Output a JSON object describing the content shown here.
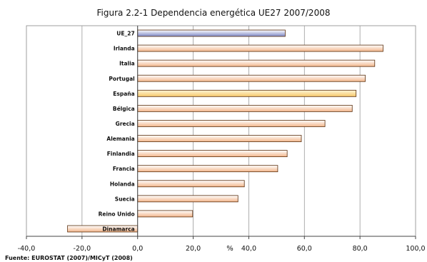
{
  "chart_data": {
    "type": "bar",
    "orientation": "horizontal",
    "title": "Figura 2.2-1 Dependencia energética UE27 2007/2008",
    "xlabel": "%",
    "source": "Fuente: EUROSTAT (2007)/MICyT (2008)",
    "xlim": [
      -40,
      100
    ],
    "x_ticks": [
      -40,
      -20,
      0,
      20,
      40,
      60,
      80,
      100
    ],
    "x_tick_labels": [
      "-40,0",
      "-20,0",
      "0,0",
      "20,0",
      "40,0",
      "60,0",
      "80,0",
      "100,0"
    ],
    "grid": "vertical",
    "categories": [
      "UE_27",
      "Irlanda",
      "Italia",
      "Portugal",
      "España",
      "Bélgica",
      "Grecia",
      "Alemania",
      "Finlandia",
      "Francia",
      "Holanda",
      "Suecia",
      "Reino Unido",
      "Dinamarca"
    ],
    "values": [
      53.1,
      88.3,
      85.3,
      81.9,
      78.6,
      77.2,
      67.4,
      58.9,
      53.8,
      50.4,
      38.4,
      36.1,
      19.8,
      -25.2
    ],
    "colors": {
      "highlight": "#7c86c4",
      "spain": "#f5c86a",
      "default_top": "#ffffff",
      "default_bottom": "#f2b58a",
      "outline": "#5a2f0e",
      "grid": "#9a9a9a"
    },
    "highlight_category": "UE_27"
  }
}
